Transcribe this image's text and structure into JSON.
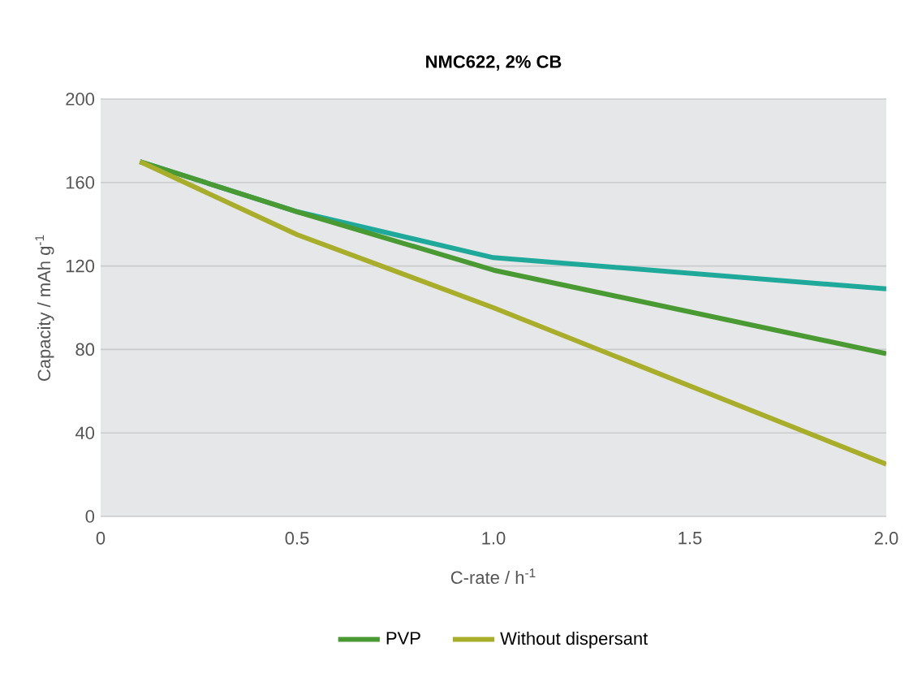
{
  "chart_data": {
    "type": "line",
    "title": "NMC622, 2% CB",
    "xlabel": "C-rate / h$^{-1}$",
    "ylabel": "Capacity / mAh g$^{-1}$",
    "x": [
      0.1,
      0.5,
      1.0,
      2.0
    ],
    "series": [
      {
        "color": "#1fa99a",
        "values": [
          170,
          146,
          124,
          109
        ]
      },
      {
        "name": "PVP",
        "color": "#4a9a34",
        "values": [
          170,
          146,
          118,
          78
        ]
      },
      {
        "name": "Without dispersant",
        "color": "#a8ad2a",
        "values": [
          170,
          135,
          100,
          25
        ]
      }
    ],
    "xlim": [
      0,
      2.0
    ],
    "xticks": [
      {
        "value": 0,
        "label": "0"
      },
      {
        "value": 0.5,
        "label": "0.5"
      },
      {
        "value": 1.0,
        "label": "1.0"
      },
      {
        "value": 1.5,
        "label": "1.5"
      },
      {
        "value": 2.0,
        "label": "2.0"
      }
    ],
    "ylim": [
      0,
      200
    ],
    "yticks": [
      0,
      40,
      80,
      120,
      160,
      200
    ],
    "grid": "y",
    "legend": "bottom",
    "marker": "none",
    "line_style": "solid"
  }
}
